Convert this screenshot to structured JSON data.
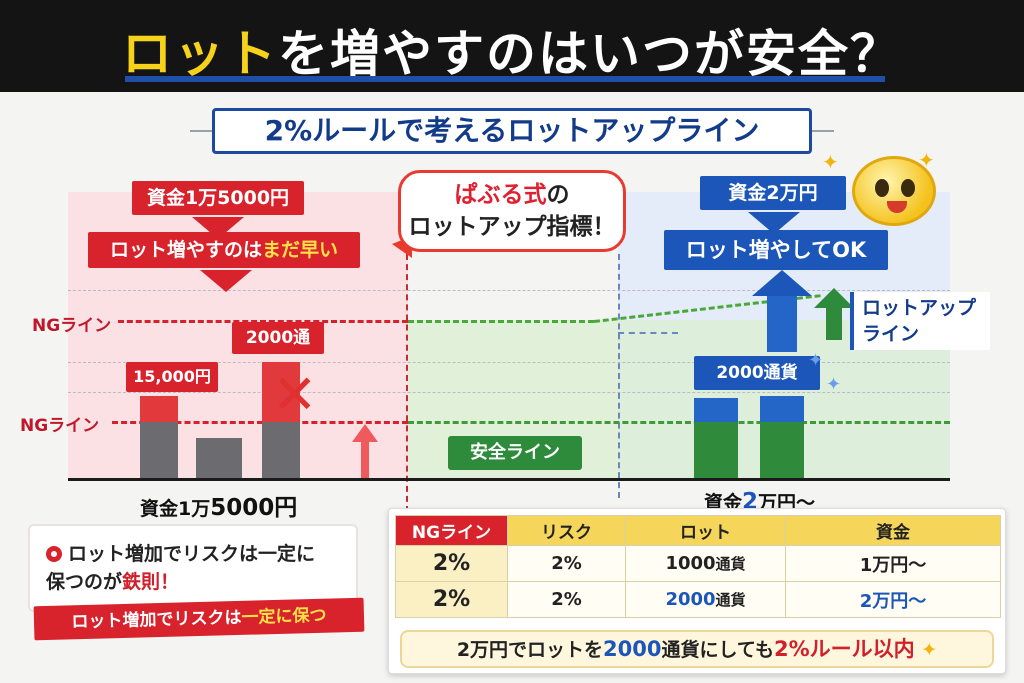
{
  "banner": {
    "title_highlight": "ロット",
    "title_rest": "を増やすのはいつが安全？"
  },
  "subtitle": "2%ルールで考えるロットアップライン",
  "chart": {
    "ng_label": "NGライン",
    "left": {
      "capital_tag": "資金1万5000円",
      "warning_prefix": "ロット増やすのは",
      "warning_emph": "まだ早い",
      "bar_label_1": "15,000円",
      "bar_label_2": "2000通",
      "axis_prefix": "資金1万",
      "axis_emph": "5000円"
    },
    "bubble": {
      "line1_emph": "ぱぶる式",
      "line1_rest": "の",
      "line2": "ロットアップ指標！"
    },
    "safe_label": "安全ライン",
    "right": {
      "capital_tag": "資金2万円",
      "ok_tag": "ロット増やしてOK",
      "bar_label": "2000通貨",
      "lotup_label_1": "ロットアップ",
      "lotup_label_2": "ライン",
      "axis_prefix": "資金",
      "axis_emph": "2",
      "axis_suffix": "万円〜"
    }
  },
  "note": {
    "line1": "ロット増加でリスクは一定に",
    "line2_prefix": "保つのが",
    "line2_emph": "鉄則",
    "line2_suffix": "！",
    "brush_prefix": "ロット増加でリスクは",
    "brush_emph": "一定に保つ"
  },
  "table": {
    "headers": [
      "NGライン",
      "リスク",
      "ロット",
      "資金"
    ],
    "rows": [
      {
        "ng": "2%",
        "risk": "2%",
        "lot_num": "1000",
        "lot_unit": "通貨",
        "capital": "1万円〜"
      },
      {
        "ng": "2%",
        "risk": "2%",
        "lot_num": "2000",
        "lot_unit": "通貨",
        "capital": "2万円〜"
      }
    ],
    "summary": {
      "p1": "2万円でロットを",
      "p2": "2000",
      "p3": "通貨にしても",
      "p4": "2%ルール以内"
    }
  },
  "colors": {
    "red": "#d8222c",
    "blue": "#1b56b8",
    "green": "#2d8b3b",
    "yellow": "#f7d21b"
  }
}
